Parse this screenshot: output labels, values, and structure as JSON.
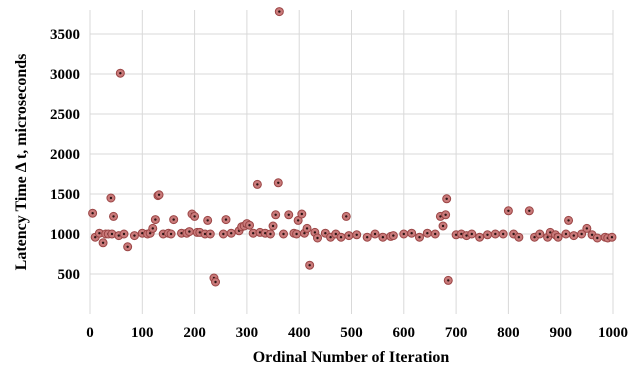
{
  "chart_data": {
    "type": "scatter",
    "xlabel": "Ordinal Number of Iteration",
    "ylabel": "Latency Time Δ t, microseconds",
    "xlim": [
      0,
      1000
    ],
    "ylim": [
      0,
      3800
    ],
    "x_ticks": [
      "0",
      "100",
      "200",
      "300",
      "400",
      "500",
      "600",
      "700",
      "800",
      "900",
      "1000"
    ],
    "y_ticks": [
      "500",
      "1000",
      "1500",
      "2000",
      "2500",
      "3000",
      "3500"
    ],
    "grid": true,
    "series": [
      {
        "points": [
          [
            5,
            1260
          ],
          [
            10,
            960
          ],
          [
            18,
            1010
          ],
          [
            25,
            890
          ],
          [
            30,
            1000
          ],
          [
            35,
            1000
          ],
          [
            40,
            1450
          ],
          [
            42,
            1000
          ],
          [
            45,
            1220
          ],
          [
            55,
            980
          ],
          [
            58,
            3010
          ],
          [
            65,
            1000
          ],
          [
            72,
            840
          ],
          [
            85,
            980
          ],
          [
            100,
            1010
          ],
          [
            110,
            1000
          ],
          [
            115,
            1010
          ],
          [
            120,
            1070
          ],
          [
            125,
            1180
          ],
          [
            130,
            1480
          ],
          [
            132,
            1490
          ],
          [
            140,
            1000
          ],
          [
            150,
            1010
          ],
          [
            155,
            1000
          ],
          [
            160,
            1180
          ],
          [
            175,
            1010
          ],
          [
            185,
            1010
          ],
          [
            190,
            1030
          ],
          [
            195,
            1250
          ],
          [
            200,
            1220
          ],
          [
            205,
            1020
          ],
          [
            210,
            1020
          ],
          [
            220,
            1000
          ],
          [
            225,
            1170
          ],
          [
            230,
            1000
          ],
          [
            237,
            450
          ],
          [
            240,
            400
          ],
          [
            255,
            1000
          ],
          [
            260,
            1180
          ],
          [
            270,
            1010
          ],
          [
            285,
            1040
          ],
          [
            290,
            1090
          ],
          [
            295,
            1100
          ],
          [
            300,
            1130
          ],
          [
            305,
            1110
          ],
          [
            312,
            1010
          ],
          [
            320,
            1620
          ],
          [
            325,
            1020
          ],
          [
            335,
            1010
          ],
          [
            345,
            1000
          ],
          [
            350,
            1100
          ],
          [
            355,
            1240
          ],
          [
            360,
            1640
          ],
          [
            362,
            3780
          ],
          [
            370,
            1000
          ],
          [
            380,
            1240
          ],
          [
            390,
            1010
          ],
          [
            395,
            1000
          ],
          [
            398,
            1170
          ],
          [
            405,
            1250
          ],
          [
            410,
            1010
          ],
          [
            415,
            1070
          ],
          [
            420,
            610
          ],
          [
            430,
            1020
          ],
          [
            435,
            950
          ],
          [
            450,
            1010
          ],
          [
            460,
            960
          ],
          [
            470,
            1000
          ],
          [
            480,
            960
          ],
          [
            490,
            1220
          ],
          [
            495,
            980
          ],
          [
            510,
            990
          ],
          [
            530,
            960
          ],
          [
            545,
            1000
          ],
          [
            560,
            960
          ],
          [
            575,
            970
          ],
          [
            580,
            980
          ],
          [
            600,
            1000
          ],
          [
            615,
            1010
          ],
          [
            630,
            960
          ],
          [
            645,
            1010
          ],
          [
            660,
            1000
          ],
          [
            670,
            1220
          ],
          [
            675,
            1100
          ],
          [
            680,
            1240
          ],
          [
            682,
            1440
          ],
          [
            685,
            420
          ],
          [
            700,
            990
          ],
          [
            710,
            1000
          ],
          [
            720,
            980
          ],
          [
            730,
            1000
          ],
          [
            745,
            960
          ],
          [
            760,
            990
          ],
          [
            775,
            1000
          ],
          [
            790,
            1000
          ],
          [
            800,
            1290
          ],
          [
            810,
            1000
          ],
          [
            820,
            960
          ],
          [
            840,
            1290
          ],
          [
            850,
            960
          ],
          [
            860,
            1000
          ],
          [
            875,
            960
          ],
          [
            880,
            1020
          ],
          [
            890,
            990
          ],
          [
            895,
            960
          ],
          [
            910,
            1000
          ],
          [
            915,
            1170
          ],
          [
            925,
            980
          ],
          [
            940,
            1000
          ],
          [
            950,
            1070
          ],
          [
            960,
            990
          ],
          [
            970,
            950
          ],
          [
            985,
            960
          ],
          [
            990,
            950
          ],
          [
            998,
            960
          ]
        ]
      }
    ]
  }
}
